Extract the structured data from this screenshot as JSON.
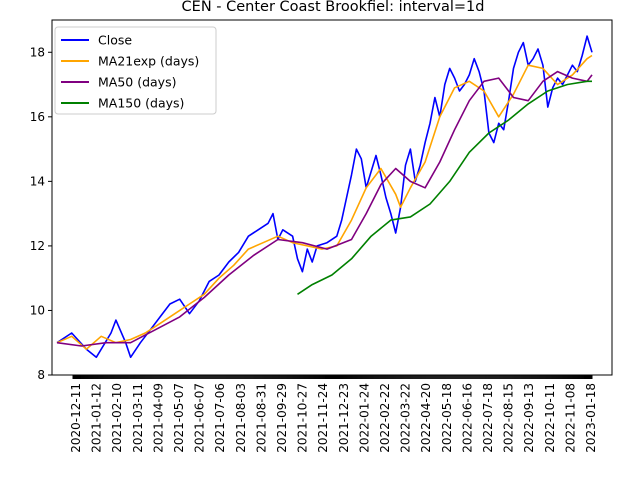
{
  "chart_data": {
    "type": "line",
    "title": "CEN - Center Coast Brookfiel: interval=1d",
    "xlabel": "",
    "ylabel": "",
    "x_tick_labels": [
      "2020-12-11",
      "2021-01-12",
      "2021-02-10",
      "2021-03-11",
      "2021-04-09",
      "2021-05-07",
      "2021-06-07",
      "2021-07-06",
      "2021-08-03",
      "2021-08-31",
      "2021-09-29",
      "2021-10-27",
      "2021-11-24",
      "2021-12-23",
      "2022-01-24",
      "2022-02-22",
      "2022-03-22",
      "2022-04-20",
      "2022-05-18",
      "2022-06-16",
      "2022-07-18",
      "2022-08-15",
      "2022-09-13",
      "2022-10-11",
      "2022-11-08",
      "2023-01-18"
    ],
    "ylim": [
      8,
      19
    ],
    "y_ticks": [
      8,
      10,
      12,
      14,
      16,
      18
    ],
    "legend_position": "upper-left",
    "series": [
      {
        "name": "Close",
        "color": "#0000ff",
        "points": [
          [
            0,
            9.0
          ],
          [
            3,
            9.3
          ],
          [
            6,
            8.8
          ],
          [
            8,
            8.55
          ],
          [
            11,
            9.3
          ],
          [
            12,
            9.7
          ],
          [
            14,
            9.0
          ],
          [
            15,
            8.55
          ],
          [
            17,
            9.0
          ],
          [
            19,
            9.4
          ],
          [
            21,
            9.8
          ],
          [
            23,
            10.2
          ],
          [
            25,
            10.35
          ],
          [
            27,
            9.9
          ],
          [
            29,
            10.3
          ],
          [
            31,
            10.9
          ],
          [
            33,
            11.1
          ],
          [
            35,
            11.5
          ],
          [
            37,
            11.8
          ],
          [
            39,
            12.3
          ],
          [
            41,
            12.5
          ],
          [
            43,
            12.7
          ],
          [
            44,
            13.0
          ],
          [
            45,
            12.2
          ],
          [
            46,
            12.5
          ],
          [
            48,
            12.3
          ],
          [
            49,
            11.6
          ],
          [
            50,
            11.2
          ],
          [
            51,
            11.9
          ],
          [
            52,
            11.5
          ],
          [
            53,
            12.0
          ],
          [
            55,
            12.1
          ],
          [
            57,
            12.3
          ],
          [
            58,
            12.8
          ],
          [
            59,
            13.5
          ],
          [
            60,
            14.2
          ],
          [
            61,
            15.0
          ],
          [
            62,
            14.7
          ],
          [
            63,
            13.8
          ],
          [
            65,
            14.8
          ],
          [
            66,
            14.2
          ],
          [
            67,
            13.5
          ],
          [
            68,
            13.0
          ],
          [
            69,
            12.4
          ],
          [
            70,
            13.2
          ],
          [
            71,
            14.5
          ],
          [
            72,
            15.0
          ],
          [
            73,
            14.0
          ],
          [
            74,
            14.5
          ],
          [
            75,
            15.2
          ],
          [
            76,
            15.8
          ],
          [
            77,
            16.6
          ],
          [
            78,
            16.0
          ],
          [
            79,
            17.0
          ],
          [
            80,
            17.5
          ],
          [
            81,
            17.2
          ],
          [
            82,
            16.8
          ],
          [
            83,
            17.0
          ],
          [
            84,
            17.3
          ],
          [
            85,
            17.8
          ],
          [
            86,
            17.4
          ],
          [
            87,
            16.8
          ],
          [
            88,
            15.5
          ],
          [
            89,
            15.2
          ],
          [
            90,
            15.8
          ],
          [
            91,
            15.6
          ],
          [
            92,
            16.5
          ],
          [
            93,
            17.5
          ],
          [
            94,
            18.0
          ],
          [
            95,
            18.3
          ],
          [
            96,
            17.6
          ],
          [
            97,
            17.8
          ],
          [
            98,
            18.1
          ],
          [
            99,
            17.6
          ],
          [
            100,
            16.3
          ],
          [
            101,
            16.9
          ],
          [
            102,
            17.2
          ],
          [
            103,
            17.0
          ],
          [
            104,
            17.3
          ],
          [
            105,
            17.6
          ],
          [
            106,
            17.4
          ],
          [
            107,
            17.9
          ],
          [
            108,
            18.5
          ],
          [
            109,
            18.0
          ]
        ]
      },
      {
        "name": "MA21exp (days)",
        "color": "#ffa500",
        "points": [
          [
            0,
            9.0
          ],
          [
            3,
            9.2
          ],
          [
            6,
            8.8
          ],
          [
            9,
            9.2
          ],
          [
            12,
            9.0
          ],
          [
            15,
            9.1
          ],
          [
            18,
            9.3
          ],
          [
            21,
            9.6
          ],
          [
            24,
            9.9
          ],
          [
            27,
            10.2
          ],
          [
            30,
            10.5
          ],
          [
            33,
            11.0
          ],
          [
            36,
            11.4
          ],
          [
            39,
            11.9
          ],
          [
            42,
            12.1
          ],
          [
            45,
            12.3
          ],
          [
            48,
            12.1
          ],
          [
            51,
            12.0
          ],
          [
            54,
            11.9
          ],
          [
            57,
            12.0
          ],
          [
            60,
            12.8
          ],
          [
            63,
            13.8
          ],
          [
            66,
            14.4
          ],
          [
            69,
            13.6
          ],
          [
            70,
            13.2
          ],
          [
            72,
            13.8
          ],
          [
            75,
            14.6
          ],
          [
            78,
            16.0
          ],
          [
            81,
            16.9
          ],
          [
            84,
            17.1
          ],
          [
            87,
            16.8
          ],
          [
            90,
            16.0
          ],
          [
            93,
            16.7
          ],
          [
            96,
            17.6
          ],
          [
            99,
            17.5
          ],
          [
            102,
            17.0
          ],
          [
            105,
            17.3
          ],
          [
            108,
            17.8
          ],
          [
            109,
            17.9
          ]
        ]
      },
      {
        "name": "MA50 (days)",
        "color": "#800080",
        "points": [
          [
            0,
            9.0
          ],
          [
            5,
            8.9
          ],
          [
            10,
            9.0
          ],
          [
            15,
            9.0
          ],
          [
            20,
            9.4
          ],
          [
            25,
            9.8
          ],
          [
            30,
            10.4
          ],
          [
            35,
            11.1
          ],
          [
            40,
            11.7
          ],
          [
            45,
            12.2
          ],
          [
            50,
            12.1
          ],
          [
            55,
            11.9
          ],
          [
            60,
            12.2
          ],
          [
            63,
            13.0
          ],
          [
            66,
            13.9
          ],
          [
            69,
            14.4
          ],
          [
            72,
            14.0
          ],
          [
            75,
            13.8
          ],
          [
            78,
            14.6
          ],
          [
            81,
            15.6
          ],
          [
            84,
            16.5
          ],
          [
            87,
            17.1
          ],
          [
            90,
            17.2
          ],
          [
            93,
            16.6
          ],
          [
            96,
            16.5
          ],
          [
            99,
            17.1
          ],
          [
            102,
            17.4
          ],
          [
            105,
            17.2
          ],
          [
            108,
            17.1
          ],
          [
            109,
            17.3
          ]
        ]
      },
      {
        "name": "MA150 (days)",
        "color": "#008000",
        "points": [
          [
            49,
            10.5
          ],
          [
            52,
            10.8
          ],
          [
            56,
            11.1
          ],
          [
            60,
            11.6
          ],
          [
            64,
            12.3
          ],
          [
            68,
            12.8
          ],
          [
            72,
            12.9
          ],
          [
            76,
            13.3
          ],
          [
            80,
            14.0
          ],
          [
            84,
            14.9
          ],
          [
            88,
            15.5
          ],
          [
            92,
            15.9
          ],
          [
            96,
            16.4
          ],
          [
            100,
            16.8
          ],
          [
            104,
            17.0
          ],
          [
            108,
            17.1
          ],
          [
            109,
            17.1
          ]
        ]
      }
    ]
  }
}
